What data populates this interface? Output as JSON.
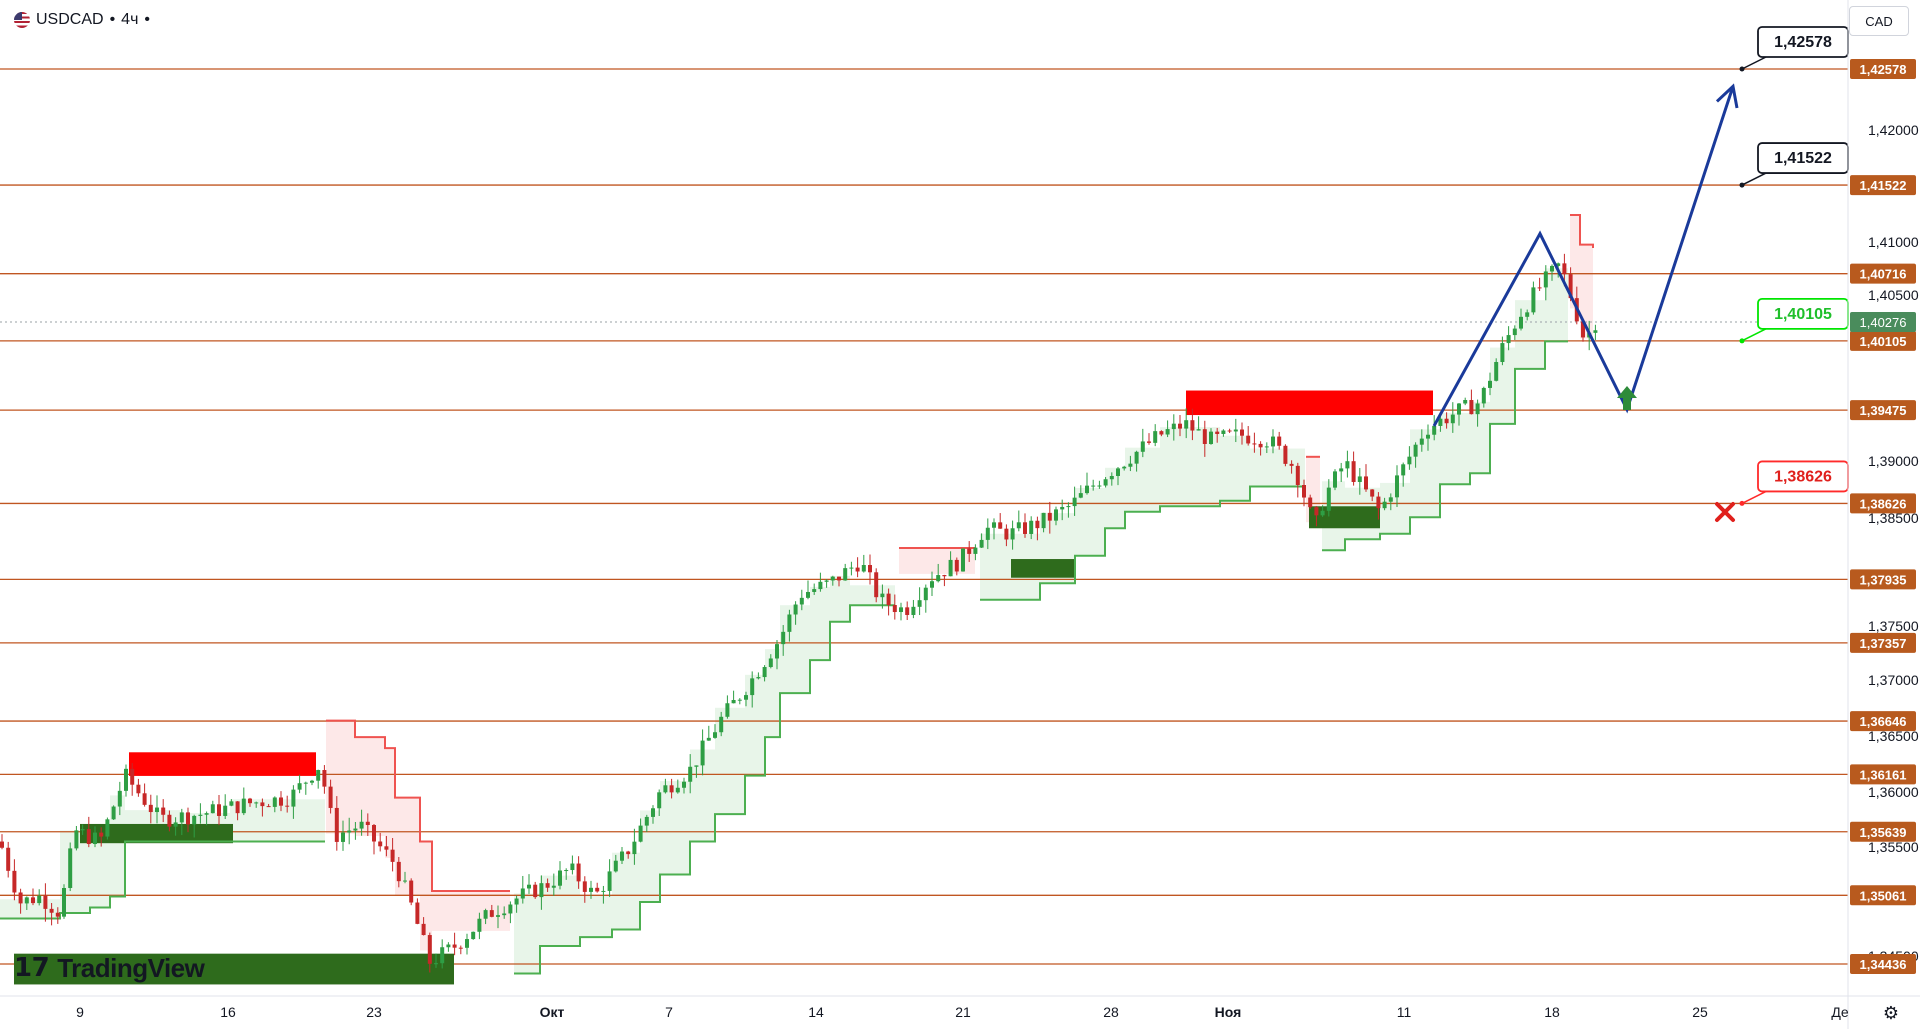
{
  "header": {
    "symbol": "USDCAD",
    "separator": "•",
    "interval": "4ч",
    "trail": "•"
  },
  "currency_button": "CAD",
  "logo_text": "TradingView",
  "icons": {
    "flag": "us-flag-icon",
    "logo": "tradingview-logo-icon",
    "settings": "gear-icon",
    "up_arrow": "up-arrow-icon",
    "cross": "cross-icon"
  },
  "colors": {
    "level_line": "#c05621",
    "level_tag": "#b85a1e",
    "bull": "#2e9e44",
    "bear": "#c62828",
    "trail_up": "#4caf50",
    "trail_down": "#ef5350",
    "fill_up": "#e8f5e9",
    "fill_down": "#fde8e8",
    "projection": "#1a3a9a",
    "zone_red": "#ff0000",
    "zone_green": "#2e6b1c",
    "callout_green": "#00e600",
    "callout_red": "#ff2a2a",
    "current_price_bg": "#4a8c5c"
  },
  "chart_data": {
    "type": "candlestick",
    "symbol": "USDCAD",
    "interval": "4ч",
    "y_ticks": [
      "1,42000",
      "1,41000",
      "1,40500",
      "1,39000",
      "1,38500",
      "1,37500",
      "1,37000",
      "1,36500",
      "1,36000",
      "1,35500",
      "1,34500"
    ],
    "x_ticks": [
      "9",
      "16",
      "23",
      "Окт",
      "7",
      "14",
      "21",
      "28",
      "Ноя",
      "11",
      "18",
      "25",
      "Де"
    ],
    "ylim": [
      1.3426,
      1.4284
    ],
    "levels": [
      1.42578,
      1.41522,
      1.40716,
      1.40105,
      1.39475,
      1.38626,
      1.37935,
      1.37357,
      1.36646,
      1.36161,
      1.35639,
      1.35061,
      1.34436
    ],
    "level_labels": [
      "1,42578",
      "1,41522",
      "1,40716",
      "1,40105",
      "1,39475",
      "1,38626",
      "1,37935",
      "1,37357",
      "1,36646",
      "1,36161",
      "1,35639",
      "1,35061",
      "1,34436"
    ],
    "current_price": 1.40276,
    "current_price_label": "1,40276",
    "callouts": [
      {
        "label": "1,42578",
        "value": 1.42578,
        "style": "target"
      },
      {
        "label": "1,41522",
        "value": 1.41522,
        "style": "target"
      },
      {
        "label": "1,40105",
        "value": 1.40105,
        "style": "entry"
      },
      {
        "label": "1,38626",
        "value": 1.38626,
        "style": "stop"
      }
    ],
    "projection": [
      {
        "t": 1434,
        "p": 1.3933
      },
      {
        "t": 1540,
        "p": 1.4108
      },
      {
        "t": 1627,
        "p": 1.3948
      },
      {
        "t": 1733,
        "p": 1.4242
      }
    ],
    "zones": [
      {
        "t0": 129,
        "t1": 316,
        "p0": 1.36147,
        "p1": 1.36362,
        "type": "supply"
      },
      {
        "t0": 80,
        "t1": 233,
        "p0": 1.35535,
        "p1": 1.3571,
        "type": "demand"
      },
      {
        "t0": 14,
        "t1": 454,
        "p0": 1.3425,
        "p1": 1.3453,
        "type": "demand"
      },
      {
        "t0": 1186,
        "t1": 1433,
        "p0": 1.3943,
        "p1": 1.39653,
        "type": "supply"
      },
      {
        "t0": 1011,
        "t1": 1074,
        "p0": 1.3795,
        "p1": 1.3812,
        "type": "demand"
      },
      {
        "t0": 1309,
        "t1": 1380,
        "p0": 1.384,
        "p1": 1.386,
        "type": "demand"
      }
    ],
    "trail": [
      {
        "t": 0,
        "p": 1.3485,
        "d": "up"
      },
      {
        "t": 60,
        "p": 1.349,
        "d": "up"
      },
      {
        "t": 90,
        "p": 1.3495,
        "d": "up"
      },
      {
        "t": 110,
        "p": 1.3505,
        "d": "up"
      },
      {
        "t": 125,
        "p": 1.3555,
        "d": "up"
      },
      {
        "t": 180,
        "p": 1.3555,
        "d": "up"
      },
      {
        "t": 230,
        "p": 1.3555,
        "d": "up"
      },
      {
        "t": 325,
        "p": 1.3555,
        "d": "up"
      },
      {
        "t": 326,
        "p": 1.3665,
        "d": "down"
      },
      {
        "t": 355,
        "p": 1.365,
        "d": "down"
      },
      {
        "t": 385,
        "p": 1.364,
        "d": "down"
      },
      {
        "t": 395,
        "p": 1.3595,
        "d": "down"
      },
      {
        "t": 420,
        "p": 1.3555,
        "d": "down"
      },
      {
        "t": 432,
        "p": 1.351,
        "d": "down"
      },
      {
        "t": 510,
        "p": 1.351,
        "d": "down"
      },
      {
        "t": 514,
        "p": 1.3435,
        "d": "up"
      },
      {
        "t": 540,
        "p": 1.346,
        "d": "up"
      },
      {
        "t": 580,
        "p": 1.3468,
        "d": "up"
      },
      {
        "t": 612,
        "p": 1.3475,
        "d": "up"
      },
      {
        "t": 640,
        "p": 1.35,
        "d": "up"
      },
      {
        "t": 660,
        "p": 1.3525,
        "d": "up"
      },
      {
        "t": 690,
        "p": 1.3555,
        "d": "up"
      },
      {
        "t": 715,
        "p": 1.358,
        "d": "up"
      },
      {
        "t": 745,
        "p": 1.3615,
        "d": "up"
      },
      {
        "t": 765,
        "p": 1.365,
        "d": "up"
      },
      {
        "t": 780,
        "p": 1.369,
        "d": "up"
      },
      {
        "t": 810,
        "p": 1.372,
        "d": "up"
      },
      {
        "t": 830,
        "p": 1.3755,
        "d": "up"
      },
      {
        "t": 850,
        "p": 1.377,
        "d": "up"
      },
      {
        "t": 895,
        "p": 1.377,
        "d": "up"
      },
      {
        "t": 899,
        "p": 1.3822,
        "d": "down"
      },
      {
        "t": 975,
        "p": 1.3822,
        "d": "down"
      },
      {
        "t": 980,
        "p": 1.3775,
        "d": "up"
      },
      {
        "t": 1040,
        "p": 1.379,
        "d": "up"
      },
      {
        "t": 1075,
        "p": 1.3815,
        "d": "up"
      },
      {
        "t": 1105,
        "p": 1.384,
        "d": "up"
      },
      {
        "t": 1125,
        "p": 1.3855,
        "d": "up"
      },
      {
        "t": 1160,
        "p": 1.386,
        "d": "up"
      },
      {
        "t": 1220,
        "p": 1.3865,
        "d": "up"
      },
      {
        "t": 1250,
        "p": 1.3878,
        "d": "up"
      },
      {
        "t": 1305,
        "p": 1.3878,
        "d": "up"
      },
      {
        "t": 1306,
        "p": 1.3905,
        "d": "down"
      },
      {
        "t": 1320,
        "p": 1.3905,
        "d": "down"
      },
      {
        "t": 1322,
        "p": 1.382,
        "d": "up"
      },
      {
        "t": 1345,
        "p": 1.383,
        "d": "up"
      },
      {
        "t": 1380,
        "p": 1.3835,
        "d": "up"
      },
      {
        "t": 1410,
        "p": 1.385,
        "d": "up"
      },
      {
        "t": 1440,
        "p": 1.388,
        "d": "up"
      },
      {
        "t": 1470,
        "p": 1.389,
        "d": "up"
      },
      {
        "t": 1490,
        "p": 1.3935,
        "d": "up"
      },
      {
        "t": 1515,
        "p": 1.3985,
        "d": "up"
      },
      {
        "t": 1545,
        "p": 1.401,
        "d": "up"
      },
      {
        "t": 1568,
        "p": 1.401,
        "d": "up"
      },
      {
        "t": 1570,
        "p": 1.4125,
        "d": "down"
      },
      {
        "t": 1580,
        "p": 1.4098,
        "d": "down"
      },
      {
        "t": 1593,
        "p": 1.4095,
        "d": "down"
      }
    ],
    "anchors": [
      {
        "t": 0,
        "p": 1.3555
      },
      {
        "t": 20,
        "p": 1.35
      },
      {
        "t": 40,
        "p": 1.3505
      },
      {
        "t": 60,
        "p": 1.349
      },
      {
        "t": 75,
        "p": 1.3565
      },
      {
        "t": 100,
        "p": 1.3555
      },
      {
        "t": 125,
        "p": 1.3615
      },
      {
        "t": 160,
        "p": 1.3575
      },
      {
        "t": 200,
        "p": 1.358
      },
      {
        "t": 250,
        "p": 1.359
      },
      {
        "t": 290,
        "p": 1.3595
      },
      {
        "t": 320,
        "p": 1.3625
      },
      {
        "t": 335,
        "p": 1.356
      },
      {
        "t": 360,
        "p": 1.357
      },
      {
        "t": 395,
        "p": 1.3535
      },
      {
        "t": 410,
        "p": 1.35
      },
      {
        "t": 430,
        "p": 1.3445
      },
      {
        "t": 455,
        "p": 1.346
      },
      {
        "t": 490,
        "p": 1.349
      },
      {
        "t": 520,
        "p": 1.3505
      },
      {
        "t": 545,
        "p": 1.3515
      },
      {
        "t": 570,
        "p": 1.353
      },
      {
        "t": 595,
        "p": 1.3505
      },
      {
        "t": 630,
        "p": 1.355
      },
      {
        "t": 660,
        "p": 1.36
      },
      {
        "t": 690,
        "p": 1.362
      },
      {
        "t": 720,
        "p": 1.3665
      },
      {
        "t": 750,
        "p": 1.37
      },
      {
        "t": 780,
        "p": 1.374
      },
      {
        "t": 800,
        "p": 1.378
      },
      {
        "t": 830,
        "p": 1.379
      },
      {
        "t": 860,
        "p": 1.381
      },
      {
        "t": 880,
        "p": 1.3775
      },
      {
        "t": 905,
        "p": 1.3765
      },
      {
        "t": 930,
        "p": 1.3795
      },
      {
        "t": 960,
        "p": 1.381
      },
      {
        "t": 985,
        "p": 1.384
      },
      {
        "t": 1010,
        "p": 1.3835
      },
      {
        "t": 1040,
        "p": 1.3845
      },
      {
        "t": 1070,
        "p": 1.386
      },
      {
        "t": 1100,
        "p": 1.3885
      },
      {
        "t": 1130,
        "p": 1.3905
      },
      {
        "t": 1160,
        "p": 1.3925
      },
      {
        "t": 1185,
        "p": 1.3935
      },
      {
        "t": 1210,
        "p": 1.392
      },
      {
        "t": 1240,
        "p": 1.3925
      },
      {
        "t": 1270,
        "p": 1.392
      },
      {
        "t": 1295,
        "p": 1.3895
      },
      {
        "t": 1315,
        "p": 1.384
      },
      {
        "t": 1325,
        "p": 1.387
      },
      {
        "t": 1345,
        "p": 1.39
      },
      {
        "t": 1360,
        "p": 1.388
      },
      {
        "t": 1380,
        "p": 1.3855
      },
      {
        "t": 1400,
        "p": 1.389
      },
      {
        "t": 1425,
        "p": 1.393
      },
      {
        "t": 1455,
        "p": 1.3945
      },
      {
        "t": 1480,
        "p": 1.3955
      },
      {
        "t": 1500,
        "p": 1.4
      },
      {
        "t": 1520,
        "p": 1.4035
      },
      {
        "t": 1540,
        "p": 1.406
      },
      {
        "t": 1560,
        "p": 1.408
      },
      {
        "t": 1575,
        "p": 1.404
      },
      {
        "t": 1585,
        "p": 1.401
      },
      {
        "t": 1595,
        "p": 1.4028
      }
    ]
  }
}
